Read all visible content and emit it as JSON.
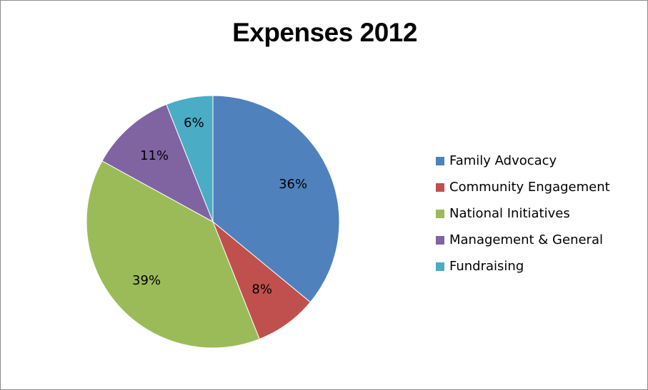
{
  "chart_data": {
    "type": "pie",
    "title": "Expenses 2012",
    "categories": [
      "Family Advocacy",
      "Community Engagement",
      "National Initiatives",
      "Management & General",
      "Fundraising"
    ],
    "values": [
      36,
      8,
      39,
      11,
      6
    ],
    "value_labels": [
      "36%",
      "8%",
      "39%",
      "11%",
      "6%"
    ],
    "colors": [
      "#4f81bd",
      "#c0504d",
      "#9bbb59",
      "#8064a2",
      "#4bacc6"
    ],
    "legend_position": "right",
    "start_angle": "12 o'clock, clockwise"
  }
}
